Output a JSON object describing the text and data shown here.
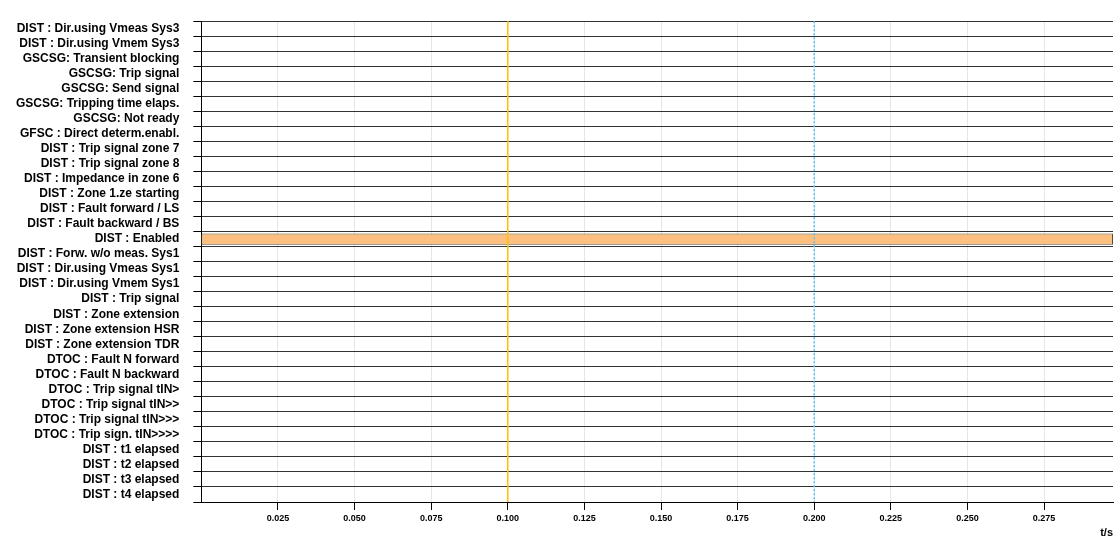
{
  "chart_data": {
    "type": "bar",
    "orientation": "horizontal",
    "xlabel": "t/s",
    "categories": [
      "DIST : Dir.using Vmeas Sys3",
      "DIST : Dir.using Vmem Sys3",
      "GSCSG: Transient blocking",
      "GSCSG: Trip signal",
      "GSCSG: Send signal",
      "GSCSG: Tripping time elaps.",
      "GSCSG: Not ready",
      "GFSC : Direct determ.enabl.",
      "DIST : Trip signal zone 7",
      "DIST : Trip signal zone 8",
      "DIST : Impedance in zone 6",
      "DIST : Zone 1.ze starting",
      "DIST : Fault forward / LS",
      "DIST : Fault backward / BS",
      "DIST : Enabled",
      "DIST : Forw. w/o meas. Sys1",
      "DIST : Dir.using Vmeas Sys1",
      "DIST : Dir.using Vmem Sys1",
      "DIST : Trip signal",
      "DIST : Zone extension",
      "DIST : Zone extension HSR",
      "DIST : Zone extension TDR",
      "DTOC : Fault N forward",
      "DTOC : Fault N backward",
      "DTOC : Trip signal tIN>",
      "DTOC : Trip signal tIN>>",
      "DTOC : Trip signal tIN>>>",
      "DTOC : Trip sign. tIN>>>>",
      "DIST : t1 elapsed",
      "DIST : t2 elapsed",
      "DIST : t3 elapsed",
      "DIST : t4 elapsed"
    ],
    "values": [
      0,
      0,
      0,
      0,
      0,
      0,
      0,
      0,
      0,
      0,
      0,
      0,
      0,
      0,
      0.2975,
      0,
      0,
      0,
      0,
      0,
      0,
      0,
      0,
      0,
      0,
      0,
      0,
      0,
      0,
      0,
      0,
      0
    ],
    "color": "#ffc07f",
    "xlim": [
      0,
      0.2975
    ],
    "xticks": [
      0.025,
      {
        "value": 0.05,
        "label": "0.050"
      },
      0.075,
      {
        "value": 0.1,
        "label": "0.100"
      },
      0.125,
      {
        "value": 0.15,
        "label": "0.150"
      },
      0.175,
      {
        "value": 0.2,
        "label": "0.200"
      },
      0.225,
      {
        "value": 0.25,
        "label": "0.250"
      },
      0.275
    ],
    "ref_lines": [
      {
        "axis": "x",
        "value": 0.1,
        "color": "#ffc000",
        "line_style": "solid"
      },
      {
        "axis": "x",
        "value": 0.2,
        "color": "#4fc3f7",
        "line_style": "dotted"
      }
    ],
    "grid": true,
    "legend": false
  }
}
